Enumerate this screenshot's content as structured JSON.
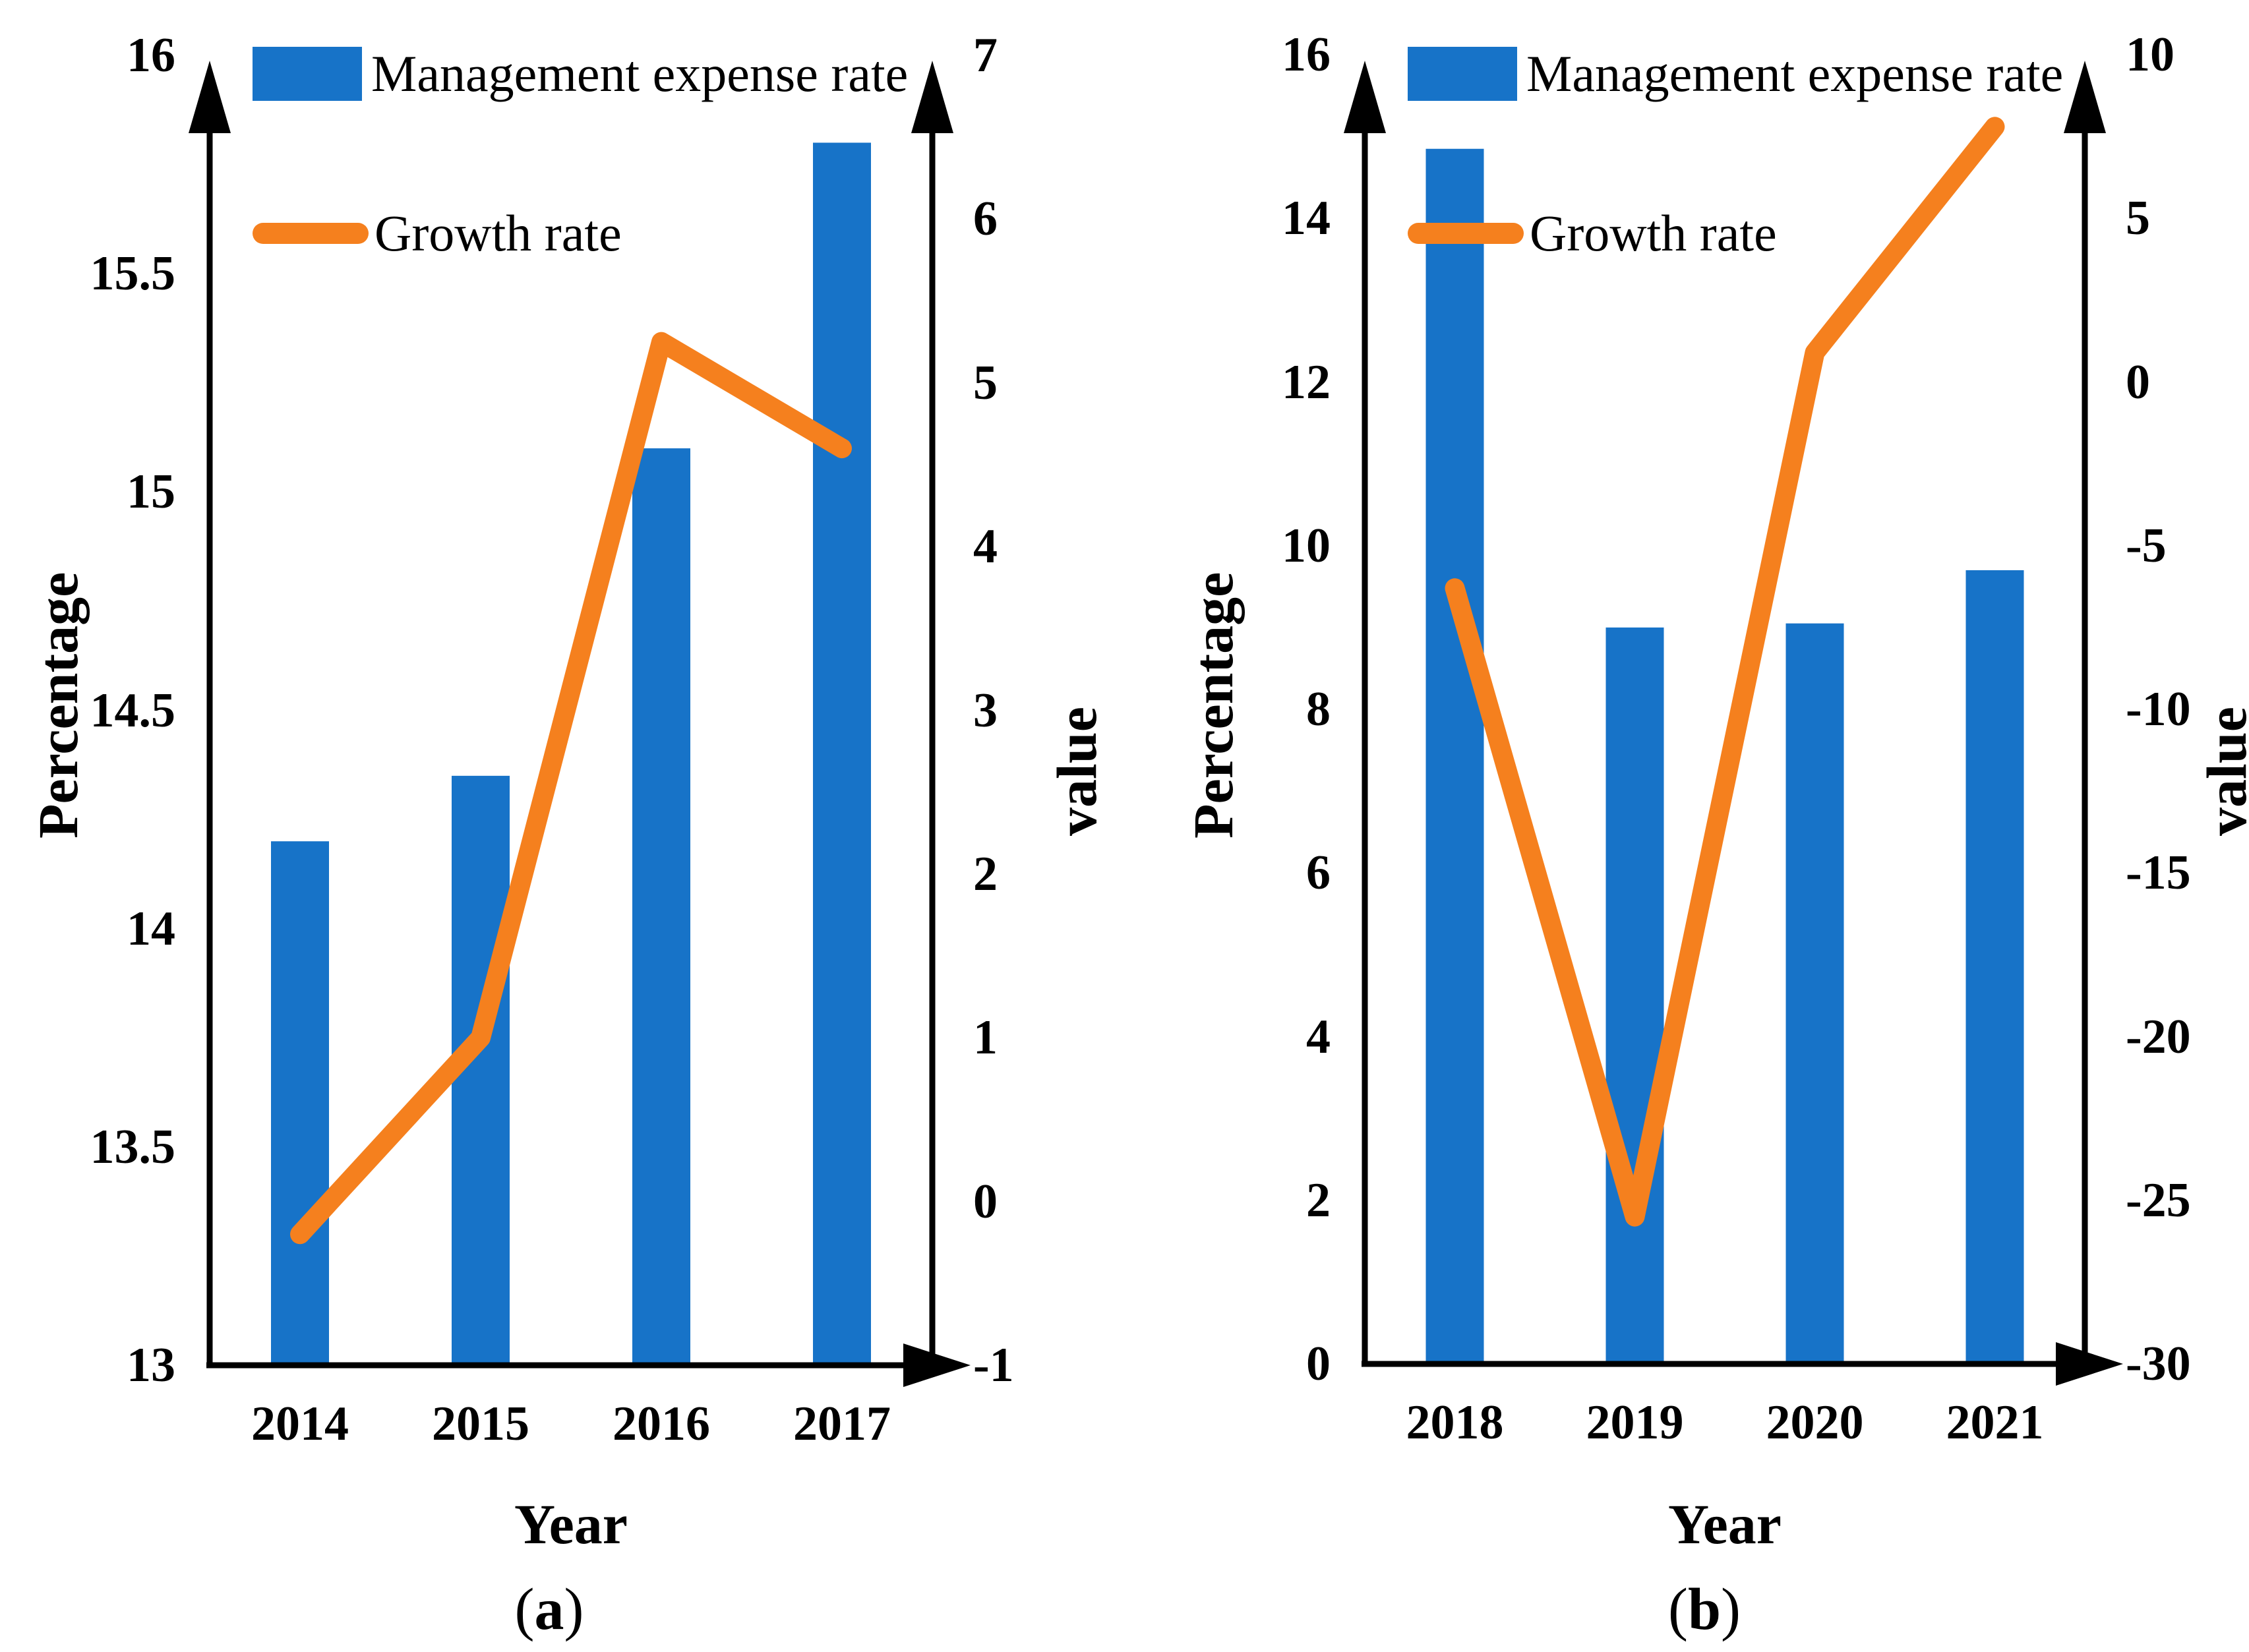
{
  "figure": {
    "legend": {
      "bar_label": "Management expense rate",
      "line_label": "Growth rate"
    },
    "colors": {
      "bar": "#1773C8",
      "line": "#F5801E",
      "axis": "#000000",
      "background": "#FFFFFF"
    }
  },
  "chart_data": [
    {
      "type": "bar+line",
      "caption": "(a)",
      "caption_open": "(",
      "caption_letter": "a",
      "caption_close": ")",
      "xlabel": "Year",
      "categories": [
        "2014",
        "2015",
        "2016",
        "2017"
      ],
      "series": [
        {
          "name": "Management expense rate",
          "type": "bar",
          "axis": "left",
          "color": "#1773C8",
          "values": [
            14.2,
            14.35,
            15.1,
            15.8
          ]
        },
        {
          "name": "Growth rate",
          "type": "line",
          "axis": "right",
          "color": "#F5801E",
          "values": [
            -0.2,
            1.0,
            5.25,
            4.6
          ]
        }
      ],
      "left_axis": {
        "label": "Percentage",
        "min": 13,
        "max": 16,
        "ticks": [
          13,
          13.5,
          14,
          14.5,
          15,
          15.5,
          16
        ]
      },
      "right_axis": {
        "label": "value",
        "min": -1,
        "max": 7,
        "ticks": [
          -1,
          0,
          1,
          2,
          3,
          4,
          5,
          6,
          7
        ]
      },
      "grid": false,
      "legend_position": "top-inside"
    },
    {
      "type": "bar+line",
      "caption": "(b)",
      "caption_open": "(",
      "caption_letter": "b",
      "caption_close": ")",
      "xlabel": "Year",
      "categories": [
        "2018",
        "2019",
        "2020",
        "2021"
      ],
      "series": [
        {
          "name": "Management expense rate",
          "type": "bar",
          "axis": "left",
          "color": "#1773C8",
          "values": [
            14.85,
            9.0,
            9.05,
            9.7
          ]
        },
        {
          "name": "Growth rate",
          "type": "line",
          "axis": "right",
          "color": "#F5801E",
          "values": [
            -6.3,
            -25.5,
            0.9,
            7.8
          ]
        }
      ],
      "left_axis": {
        "label": "Percentage",
        "min": 0,
        "max": 16,
        "ticks": [
          0,
          2,
          4,
          6,
          8,
          10,
          12,
          14,
          16
        ]
      },
      "right_axis": {
        "label": "value",
        "min": -30,
        "max": 10,
        "ticks": [
          -30,
          -25,
          -20,
          -15,
          -10,
          -5,
          0,
          5,
          10
        ]
      },
      "grid": false,
      "legend_position": "top-inside"
    }
  ]
}
